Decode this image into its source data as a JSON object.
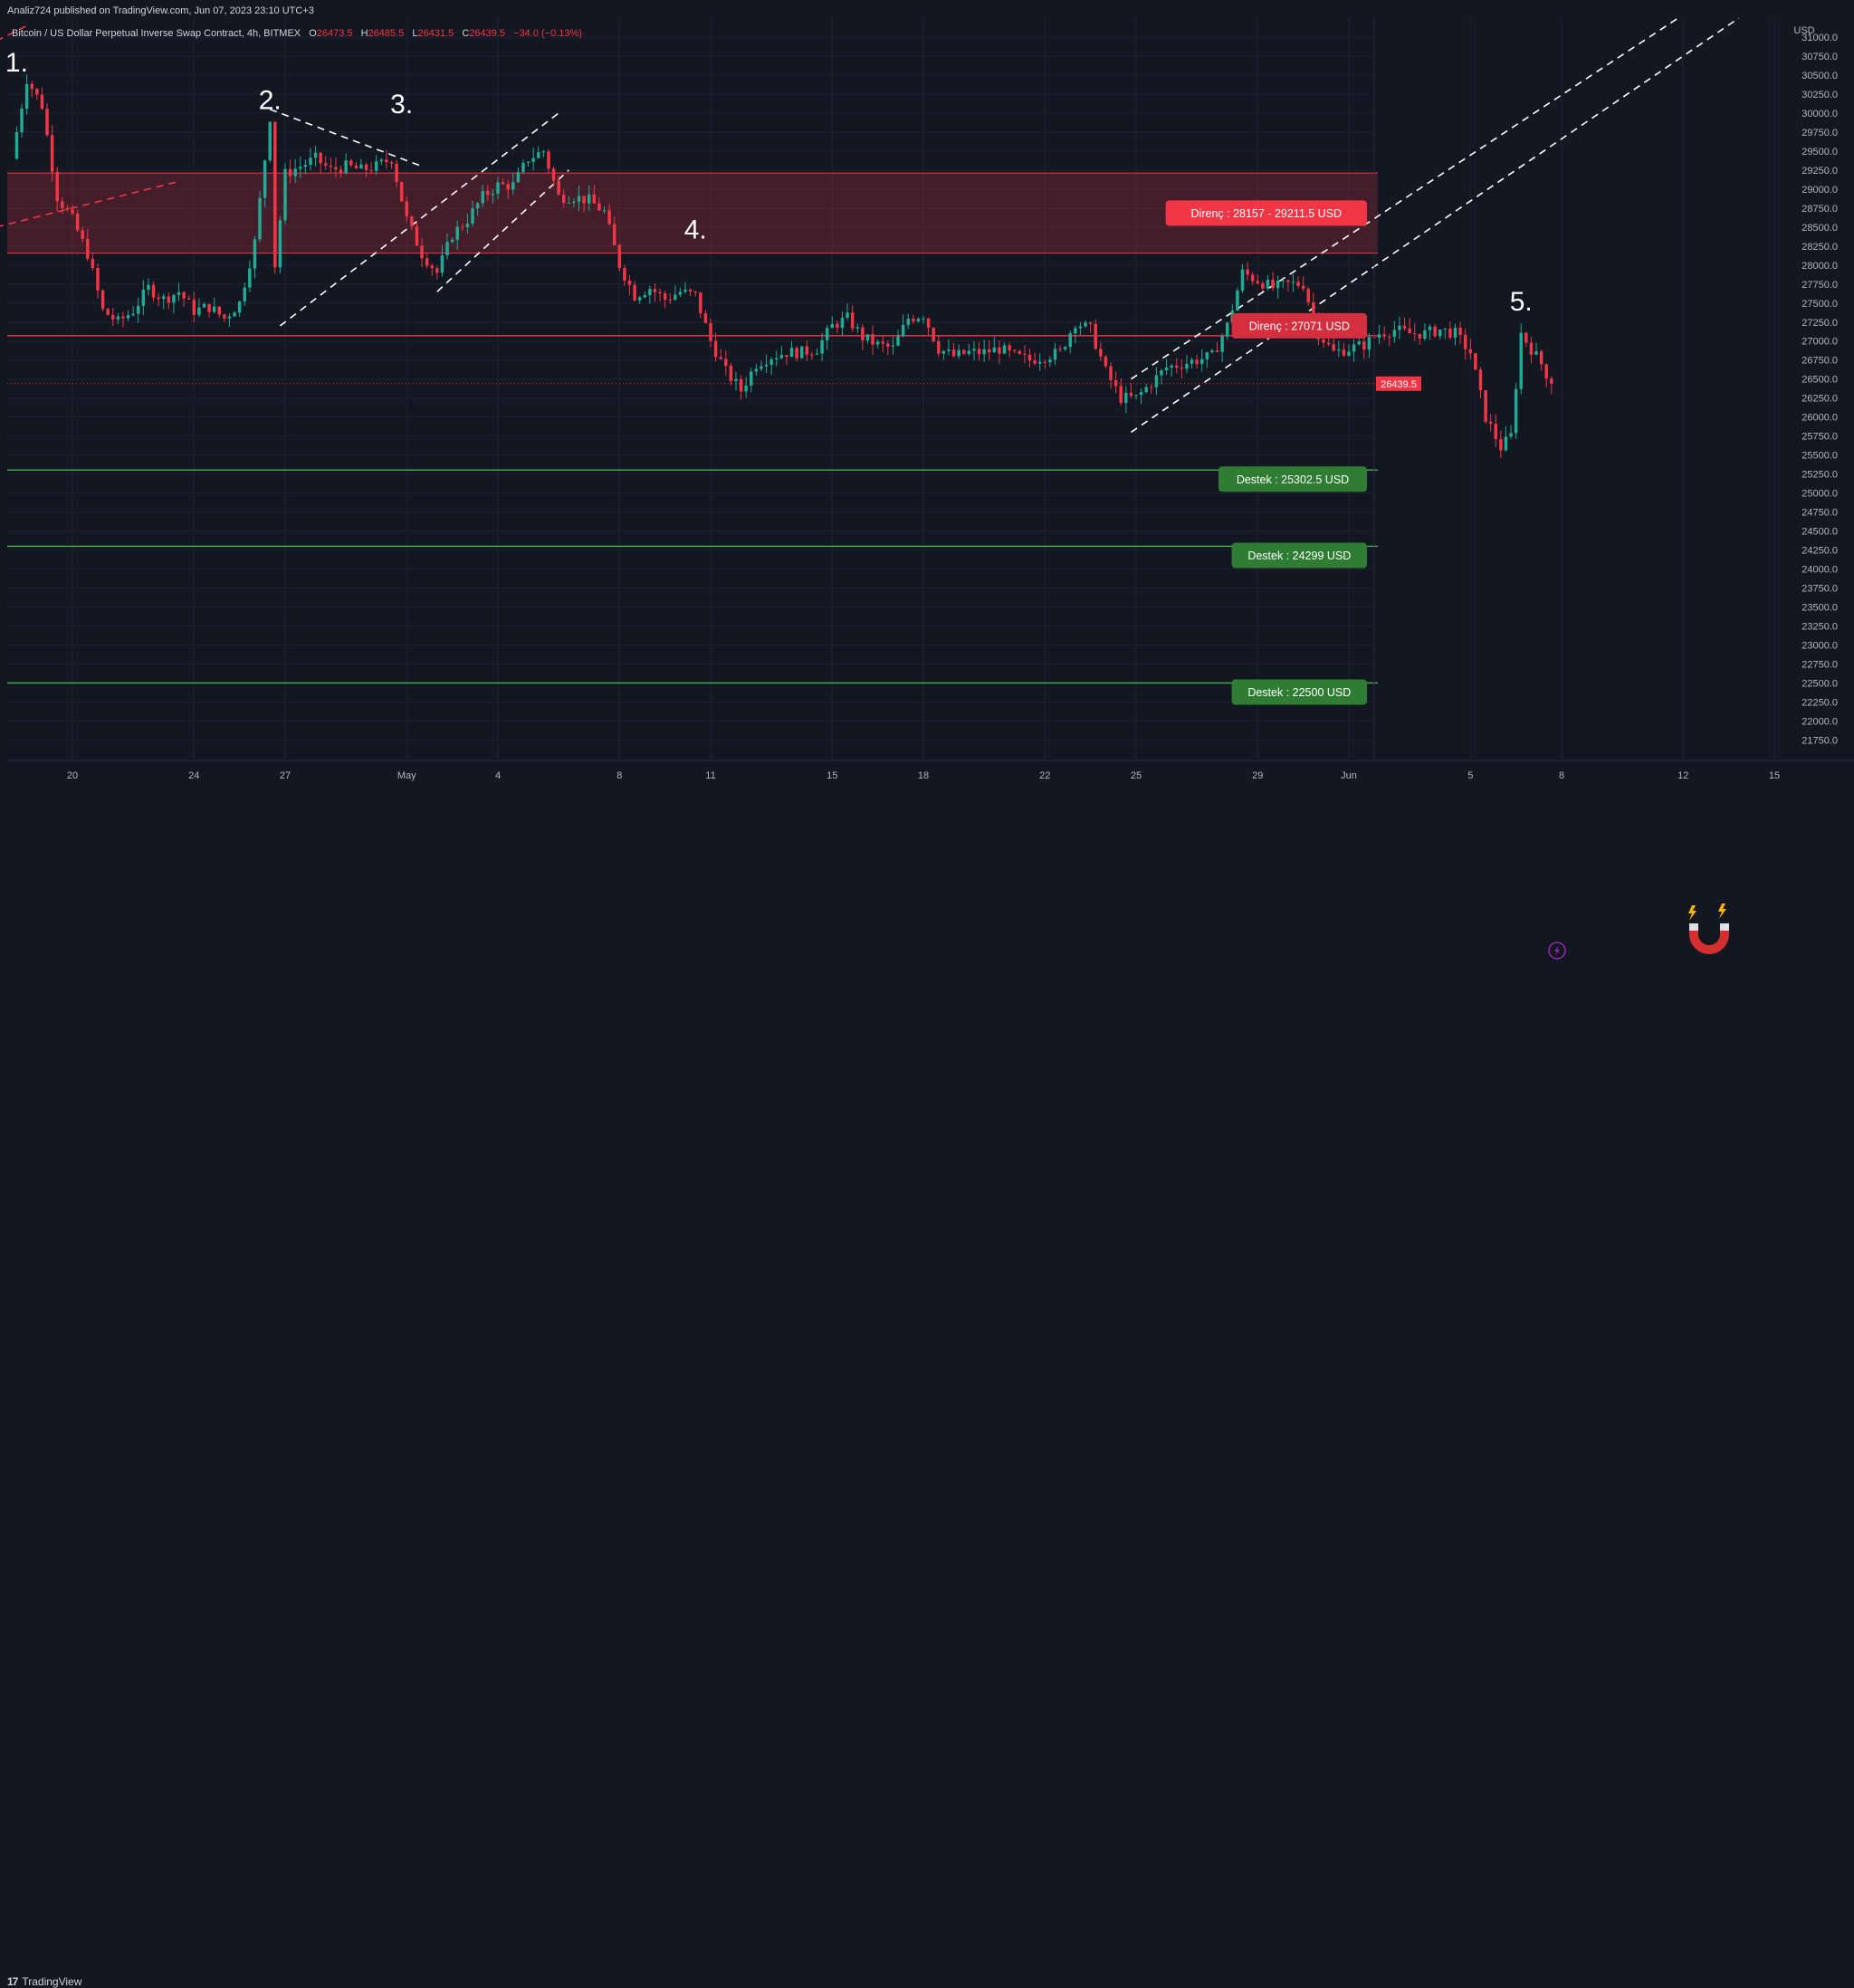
{
  "publisher": "Analiz724 published on TradingView.com, Jun 07, 2023 23:10 UTC+3",
  "branding": "TradingView",
  "header": {
    "symbol": "Bitcoin / US Dollar Perpetual Inverse Swap Contract, 4h, BITMEX",
    "open_label": "O",
    "open": "26473.5",
    "high_label": "H",
    "high": "26485.5",
    "low_label": "L",
    "low": "26431.5",
    "close_label": "C",
    "close": "26439.5",
    "change": "−34.0 (−0.13%)"
  },
  "chart_data": {
    "type": "candlestick",
    "symbol": "BTCUSD",
    "timeframe": "4h",
    "exchange": "BITMEX",
    "y_axis": {
      "unit": "USD",
      "range": [
        21600,
        31250
      ],
      "ticks": [
        "31000.0",
        "30750.0",
        "30500.0",
        "30250.0",
        "30000.0",
        "29750.0",
        "29500.0",
        "29250.0",
        "29000.0",
        "28750.0",
        "28500.0",
        "28250.0",
        "28000.0",
        "27750.0",
        "27500.0",
        "27250.0",
        "27000.0",
        "26750.0",
        "26500.0",
        "26250.0",
        "26000.0",
        "25750.0",
        "25500.0",
        "25250.0",
        "25000.0",
        "24750.0",
        "24500.0",
        "24250.0",
        "24000.0",
        "23750.0",
        "23500.0",
        "23250.0",
        "23000.0",
        "22750.0",
        "22500.0",
        "22250.0",
        "22000.0",
        "21750.0"
      ]
    },
    "x_axis": {
      "ticks": [
        {
          "label": "20",
          "date": "2023-04-20"
        },
        {
          "label": "24",
          "date": "2023-04-24"
        },
        {
          "label": "27",
          "date": "2023-04-27"
        },
        {
          "label": "May",
          "date": "2023-05-01"
        },
        {
          "label": "4",
          "date": "2023-05-04"
        },
        {
          "label": "8",
          "date": "2023-05-08"
        },
        {
          "label": "11",
          "date": "2023-05-11"
        },
        {
          "label": "15",
          "date": "2023-05-15"
        },
        {
          "label": "18",
          "date": "2023-05-18"
        },
        {
          "label": "22",
          "date": "2023-05-22"
        },
        {
          "label": "25",
          "date": "2023-05-25"
        },
        {
          "label": "29",
          "date": "2023-05-29"
        },
        {
          "label": "Jun",
          "date": "2023-06-01"
        },
        {
          "label": "5",
          "date": "2023-06-05"
        },
        {
          "label": "8",
          "date": "2023-06-08"
        },
        {
          "label": "12",
          "date": "2023-06-12"
        },
        {
          "label": "15",
          "date": "2023-06-15"
        }
      ]
    },
    "grid": true,
    "price_path": [
      [
        "2023-04-18T00:00",
        29400
      ],
      [
        "2023-04-18T12:00",
        30450
      ],
      [
        "2023-04-19T00:00",
        30100
      ],
      [
        "2023-04-19T12:00",
        28900
      ],
      [
        "2023-04-20T00:00",
        28600
      ],
      [
        "2023-04-20T12:00",
        28150
      ],
      [
        "2023-04-21T00:00",
        27400
      ],
      [
        "2023-04-21T12:00",
        27250
      ],
      [
        "2023-04-22T00:00",
        27400
      ],
      [
        "2023-04-22T12:00",
        27700
      ],
      [
        "2023-04-23T00:00",
        27550
      ],
      [
        "2023-04-23T12:00",
        27650
      ],
      [
        "2023-04-24T00:00",
        27400
      ],
      [
        "2023-04-24T12:00",
        27450
      ],
      [
        "2023-04-25T00:00",
        27300
      ],
      [
        "2023-04-25T12:00",
        27500
      ],
      [
        "2023-04-26T00:00",
        28300
      ],
      [
        "2023-04-26T12:00",
        29950
      ],
      [
        "2023-04-26T16:00",
        28000
      ],
      [
        "2023-04-27T00:00",
        29200
      ],
      [
        "2023-04-27T12:00",
        29300
      ],
      [
        "2023-04-28T00:00",
        29400
      ],
      [
        "2023-04-28T12:00",
        29250
      ],
      [
        "2023-04-29T00:00",
        29300
      ],
      [
        "2023-04-29T12:00",
        29250
      ],
      [
        "2023-04-30T00:00",
        29300
      ],
      [
        "2023-04-30T12:00",
        29400
      ],
      [
        "2023-05-01T00:00",
        28600
      ],
      [
        "2023-05-01T12:00",
        28150
      ],
      [
        "2023-05-02T00:00",
        27900
      ],
      [
        "2023-05-02T12:00",
        28400
      ],
      [
        "2023-05-03T00:00",
        28600
      ],
      [
        "2023-05-03T12:00",
        28900
      ],
      [
        "2023-05-04T00:00",
        29050
      ],
      [
        "2023-05-04T12:00",
        29050
      ],
      [
        "2023-05-05T00:00",
        29400
      ],
      [
        "2023-05-05T12:00",
        29500
      ],
      [
        "2023-05-06T00:00",
        28900
      ],
      [
        "2023-05-06T12:00",
        28900
      ],
      [
        "2023-05-07T00:00",
        28850
      ],
      [
        "2023-05-07T12:00",
        28700
      ],
      [
        "2023-05-08T00:00",
        28000
      ],
      [
        "2023-05-08T12:00",
        27600
      ],
      [
        "2023-05-09T00:00",
        27700
      ],
      [
        "2023-05-09T12:00",
        27550
      ],
      [
        "2023-05-10T00:00",
        27650
      ],
      [
        "2023-05-10T12:00",
        27600
      ],
      [
        "2023-05-11T00:00",
        27000
      ],
      [
        "2023-05-11T12:00",
        26600
      ],
      [
        "2023-05-12T00:00",
        26350
      ],
      [
        "2023-05-12T12:00",
        26700
      ],
      [
        "2023-05-13T00:00",
        26800
      ],
      [
        "2023-05-13T12:00",
        26850
      ],
      [
        "2023-05-14T00:00",
        26850
      ],
      [
        "2023-05-14T12:00",
        26900
      ],
      [
        "2023-05-15T00:00",
        27200
      ],
      [
        "2023-05-15T12:00",
        27300
      ],
      [
        "2023-05-16T00:00",
        27050
      ],
      [
        "2023-05-16T12:00",
        26950
      ],
      [
        "2023-05-17T00:00",
        26900
      ],
      [
        "2023-05-17T12:00",
        27300
      ],
      [
        "2023-05-18T00:00",
        27350
      ],
      [
        "2023-05-18T12:00",
        26900
      ],
      [
        "2023-05-19T00:00",
        26800
      ],
      [
        "2023-05-19T12:00",
        26850
      ],
      [
        "2023-05-20T00:00",
        26850
      ],
      [
        "2023-05-20T12:00",
        26900
      ],
      [
        "2023-05-21T00:00",
        26800
      ],
      [
        "2023-05-21T12:00",
        26750
      ],
      [
        "2023-05-22T00:00",
        26800
      ],
      [
        "2023-05-22T12:00",
        26850
      ],
      [
        "2023-05-23T00:00",
        27250
      ],
      [
        "2023-05-23T12:00",
        27150
      ],
      [
        "2023-05-24T00:00",
        26600
      ],
      [
        "2023-05-24T12:00",
        26250
      ],
      [
        "2023-05-25T00:00",
        26250
      ],
      [
        "2023-05-25T12:00",
        26450
      ],
      [
        "2023-05-26T00:00",
        26650
      ],
      [
        "2023-05-26T12:00",
        26700
      ],
      [
        "2023-05-27T00:00",
        26750
      ],
      [
        "2023-05-27T12:00",
        26800
      ],
      [
        "2023-05-28T00:00",
        27200
      ],
      [
        "2023-05-28T12:00",
        27900
      ],
      [
        "2023-05-29T00:00",
        27800
      ],
      [
        "2023-05-29T12:00",
        27700
      ],
      [
        "2023-05-30T00:00",
        27750
      ],
      [
        "2023-05-30T12:00",
        27750
      ],
      [
        "2023-05-31T00:00",
        27100
      ],
      [
        "2023-05-31T12:00",
        26850
      ],
      [
        "2023-06-01T00:00",
        26900
      ],
      [
        "2023-06-01T12:00",
        26950
      ],
      [
        "2023-06-02T00:00",
        27100
      ],
      [
        "2023-06-02T12:00",
        27150
      ],
      [
        "2023-06-03T00:00",
        27100
      ],
      [
        "2023-06-03T12:00",
        27100
      ],
      [
        "2023-06-04T00:00",
        27150
      ],
      [
        "2023-06-04T12:00",
        27100
      ],
      [
        "2023-06-05T00:00",
        26850
      ],
      [
        "2023-06-05T12:00",
        26000
      ],
      [
        "2023-06-06T00:00",
        25600
      ],
      [
        "2023-06-06T08:00",
        25750
      ],
      [
        "2023-06-06T16:00",
        27100
      ],
      [
        "2023-06-07T00:00",
        26900
      ],
      [
        "2023-06-07T08:00",
        26700
      ],
      [
        "2023-06-07T16:00",
        26439.5
      ]
    ],
    "markers": [
      {
        "label": "1.",
        "date": "2023-04-18T04:00",
        "price": 30550
      },
      {
        "label": "2.",
        "date": "2023-04-26T12:00",
        "price": 30050
      },
      {
        "label": "3.",
        "date": "2023-04-30T20:00",
        "price": 30000
      },
      {
        "label": "4.",
        "date": "2023-05-10T12:00",
        "price": 28350
      },
      {
        "label": "5.",
        "date": "2023-06-06T16:00",
        "price": 27400
      }
    ],
    "zones": [
      {
        "label": "Direnç : 28157 - 29211.5 USD",
        "from": 28157,
        "to": 29211.5,
        "color": "#f23645"
      }
    ],
    "levels": [
      {
        "label": "Direnç : 27071 USD",
        "price": 27071,
        "color": "#f23645"
      },
      {
        "label": "Destek : 25302.5 USD",
        "price": 25302.5,
        "color": "#4caf50"
      },
      {
        "label": "Destek : 24299 USD",
        "price": 24299,
        "color": "#4caf50"
      },
      {
        "label": "Destek : 22500 USD",
        "price": 22500,
        "color": "#4caf50"
      }
    ],
    "current_price": {
      "label": "26439.5",
      "price": 26439.5
    },
    "trendlines": [
      {
        "style": "dashed",
        "color": "#f23645",
        "points": [
          [
            "2023-04-17T12:00",
            28500
          ],
          [
            "2023-04-23T12:00",
            29100
          ]
        ]
      },
      {
        "style": "dashed",
        "color": "#f23645",
        "points": [
          [
            "2023-04-17T12:00",
            30950
          ],
          [
            "2023-04-18T12:00",
            31150
          ]
        ]
      },
      {
        "style": "dashed",
        "color": "#ffffff",
        "points": [
          [
            "2023-04-26T12:00",
            30050
          ],
          [
            "2023-05-01T12:00",
            29300
          ]
        ]
      },
      {
        "style": "dashed",
        "color": "#ffffff",
        "points": [
          [
            "2023-04-26T20:00",
            27200
          ],
          [
            "2023-05-06T00:00",
            30000
          ]
        ]
      },
      {
        "style": "dashed",
        "color": "#ffffff",
        "points": [
          [
            "2023-05-02T00:00",
            27650
          ],
          [
            "2023-05-06T08:00",
            29250
          ]
        ]
      },
      {
        "style": "dashed",
        "color": "#ffffff",
        "points": [
          [
            "2023-05-24T20:00",
            26500
          ],
          [
            "2023-06-11T20:00",
            31250
          ]
        ]
      },
      {
        "style": "dashed",
        "color": "#ffffff",
        "points": [
          [
            "2023-05-24T20:00",
            25800
          ],
          [
            "2023-06-13T20:00",
            31250
          ]
        ]
      }
    ]
  },
  "colors": {
    "background": "#131722",
    "up": "#22ab94",
    "down": "#f23645",
    "grid": "#1f2331",
    "axis_text": "#b2b5be",
    "resistance": "#f23645",
    "support": "#4caf50"
  },
  "icons": {
    "magnet": "magnet-icon",
    "lightning": "lightning-icon"
  }
}
